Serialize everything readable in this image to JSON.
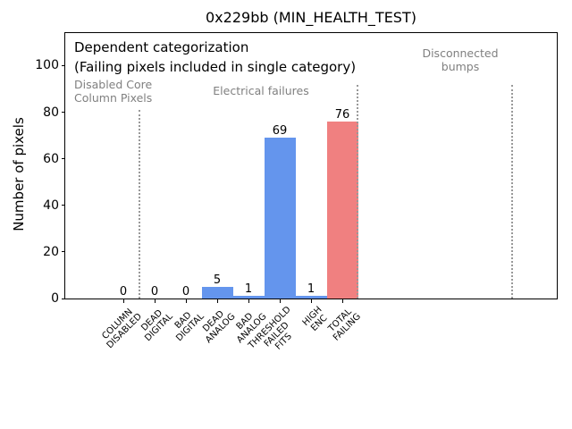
{
  "chart_data": {
    "type": "bar",
    "title": "0x229bb (MIN_HEALTH_TEST)",
    "ylabel": "Number of pixels",
    "xlabel": "",
    "categories": [
      "COLUMN\nDISABLED",
      "DEAD\nDIGITAL",
      "BAD\nDIGITAL",
      "DEAD\nANALOG",
      "BAD\nANALOG",
      "THRESHOLD\nFAILED\nFITS",
      "HIGH\nENC",
      "TOTAL\nFAILING"
    ],
    "values": [
      0,
      0,
      0,
      5,
      1,
      69,
      1,
      76
    ],
    "value_labels": [
      "0",
      "0",
      "0",
      "5",
      "1",
      "69",
      "1",
      "76"
    ],
    "bar_colors": [
      "#6495ed",
      "#6495ed",
      "#6495ed",
      "#6495ed",
      "#6495ed",
      "#6495ed",
      "#6495ed",
      "#f08080"
    ],
    "yticks": [
      0,
      20,
      40,
      60,
      80,
      100
    ],
    "ylim": [
      0,
      114
    ],
    "grid": false,
    "legend": null,
    "colors": {
      "bar_blue": "#6495ed",
      "bar_red": "#f08080",
      "separator_gray": "#999999",
      "annotation_gray": "#808080",
      "text_black": "#000000"
    },
    "annotations": [
      {
        "text": "Dependent categorization",
        "style": "primary",
        "align": "left",
        "x": 83,
        "y": 44
      },
      {
        "text": "(Failing pixels included in single category)",
        "style": "primary",
        "align": "left",
        "x": 83,
        "y": 66
      },
      {
        "text": "Disabled Core\nColumn Pixels",
        "style": "secondary",
        "align": "left",
        "x": 83,
        "y": 87
      },
      {
        "text": "Electrical failures",
        "style": "secondary",
        "align": "center",
        "x": 292,
        "y": 94
      },
      {
        "text": "Disconnected\nbumps",
        "style": "secondary",
        "align": "center",
        "x": 515,
        "y": 52
      }
    ],
    "separators": [
      {
        "x": 156,
        "y_top": 123
      },
      {
        "x": 400,
        "y_top": 95
      },
      {
        "x": 573,
        "y_top": 95
      }
    ]
  }
}
